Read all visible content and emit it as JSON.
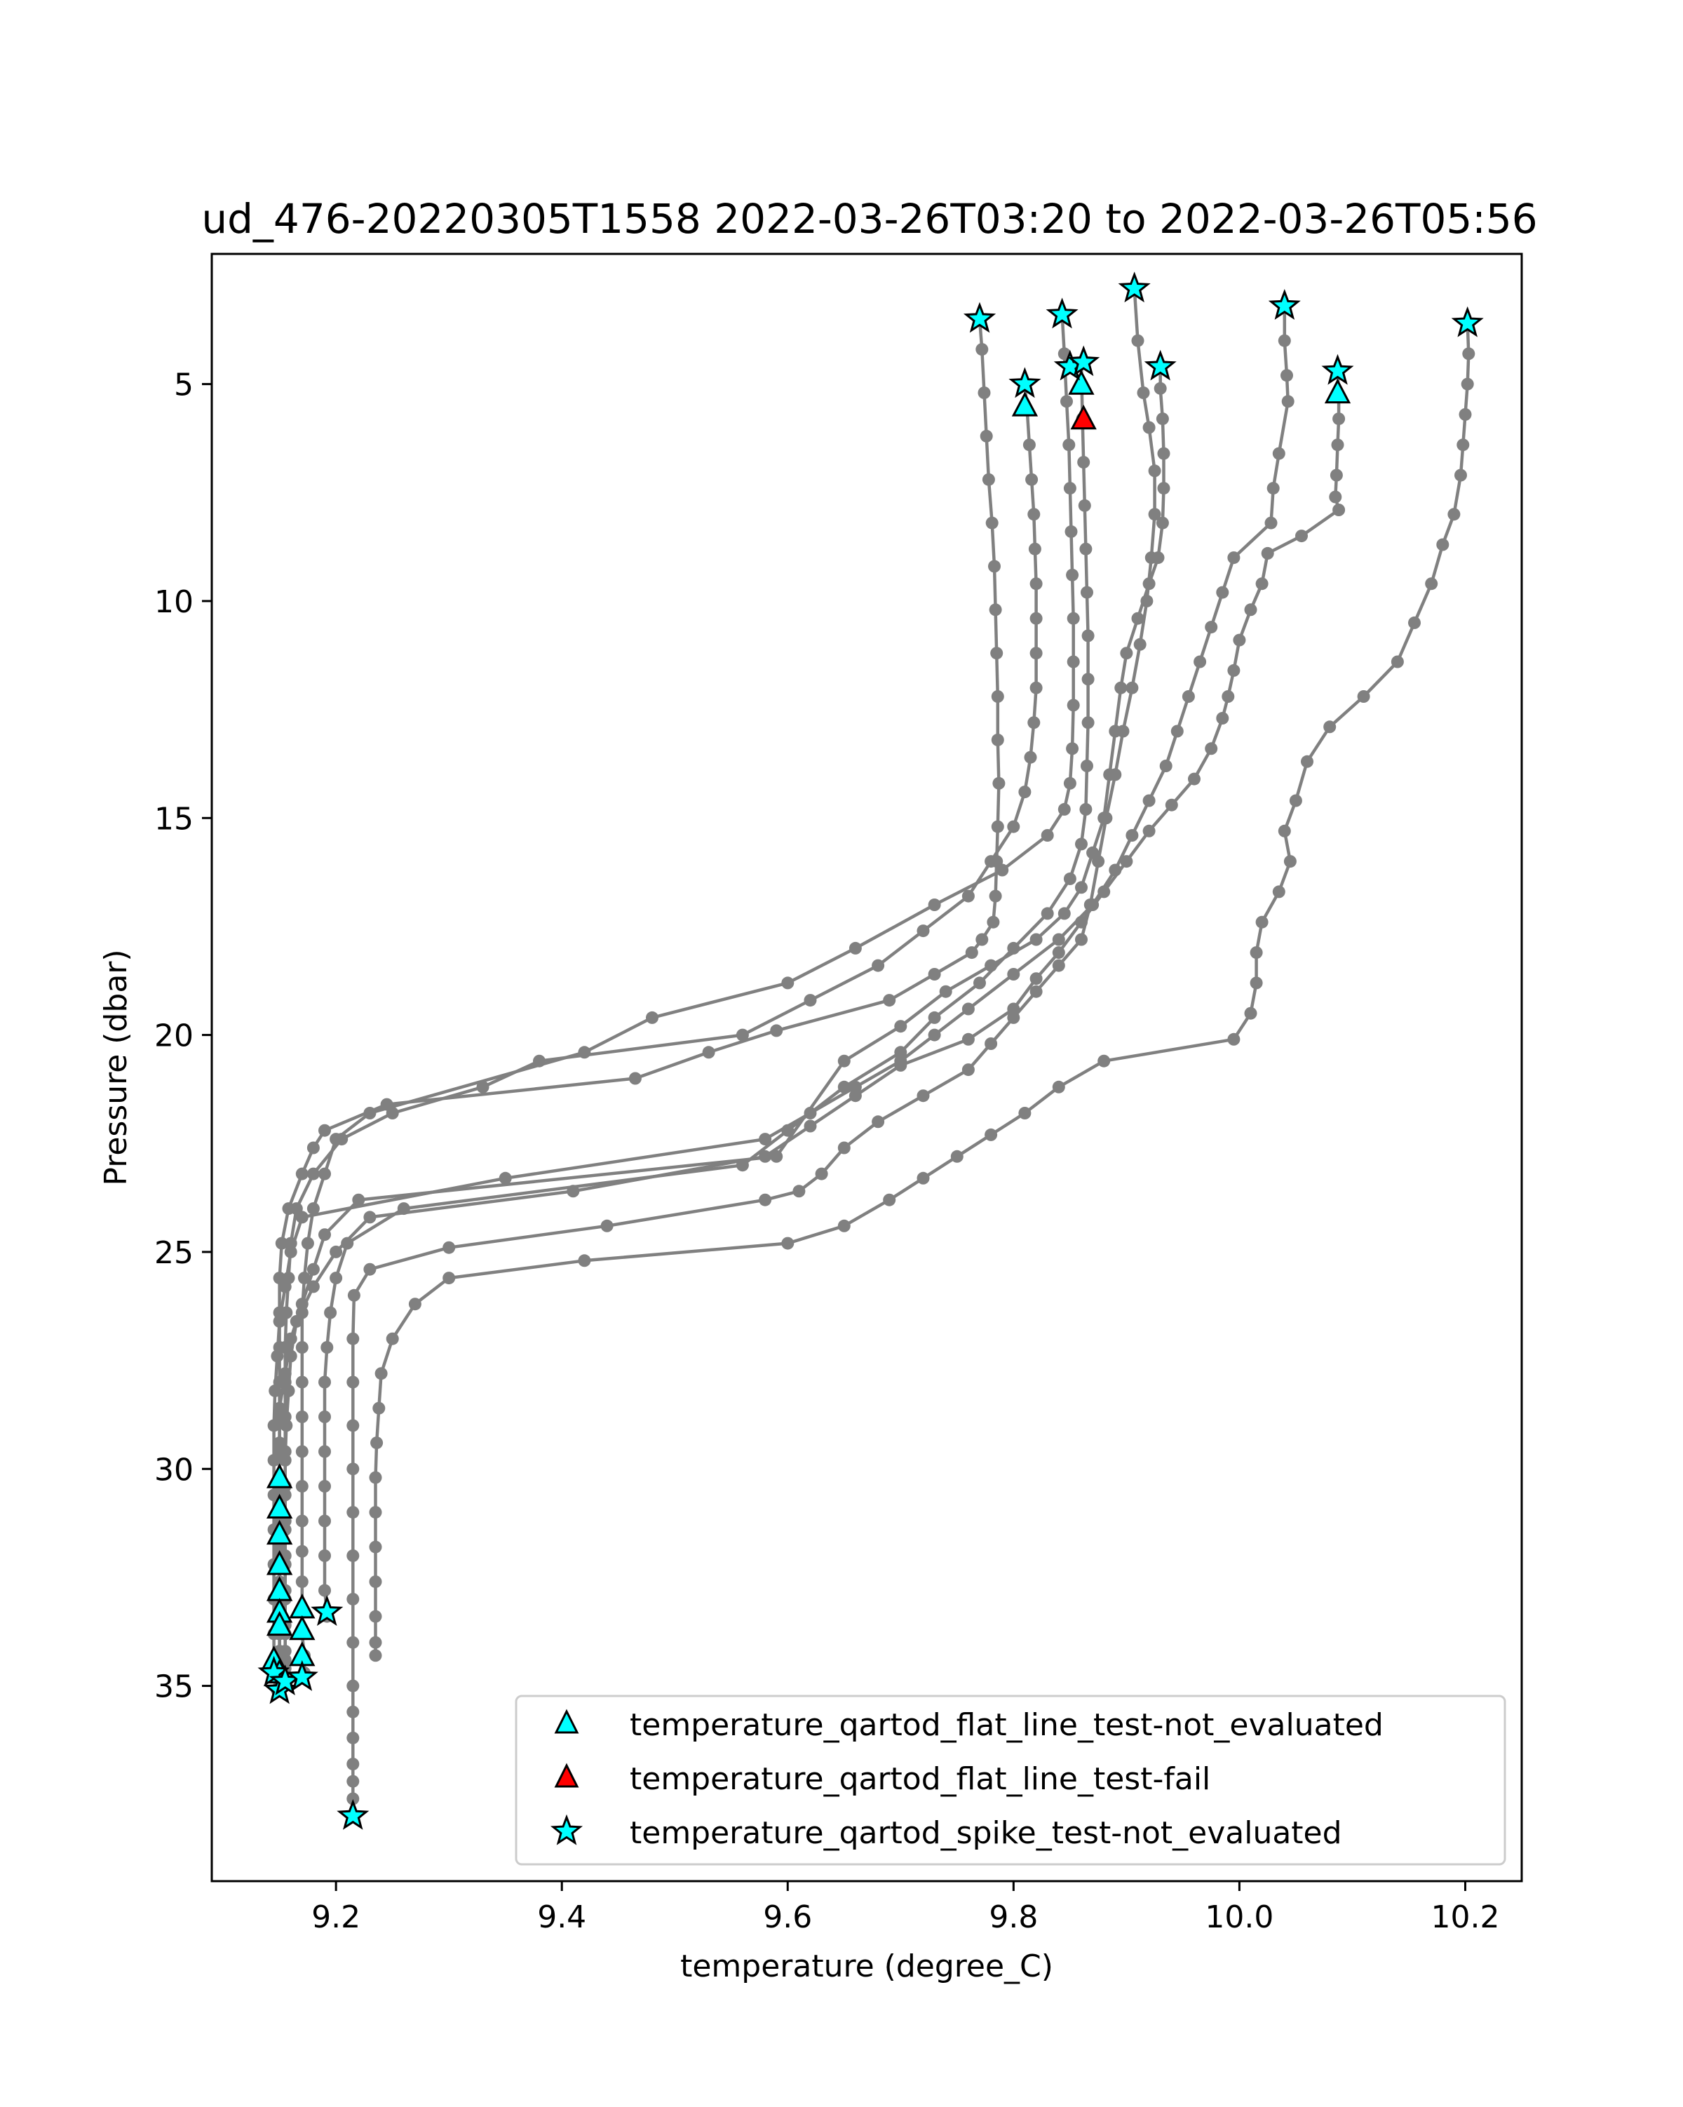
{
  "chart_data": {
    "type": "scatter",
    "title": "ud_476-20220305T1558 2022-03-26T03:20 to 2022-03-26T05:56",
    "xlabel": "temperature (degree_C)",
    "ylabel": "Pressure (dbar)",
    "xlim": [
      9.09,
      10.25
    ],
    "ylim": [
      39.5,
      2.0
    ],
    "y_inverted": true,
    "xticks": [
      9.2,
      9.4,
      9.6,
      9.8,
      10.0,
      10.2
    ],
    "xtick_labels": [
      "9.2",
      "9.4",
      "9.6",
      "9.8",
      "10.0",
      "10.2"
    ],
    "yticks": [
      5,
      10,
      15,
      20,
      25,
      30,
      35
    ],
    "ytick_labels": [
      "5",
      "10",
      "15",
      "20",
      "25",
      "30",
      "35"
    ],
    "grid": false,
    "legend_position": "lower right",
    "colors": {
      "profile_line": "#808080",
      "not_evaluated": "#00ffff",
      "fail": "#ff0000",
      "marker_edge": "#000000"
    },
    "series": [
      {
        "x": [
          9.77,
          9.772,
          9.774,
          9.776,
          9.778,
          9.781,
          9.783,
          9.784,
          9.785,
          9.786,
          9.786,
          9.787,
          9.786,
          9.785,
          9.784,
          9.782,
          9.772,
          9.763,
          9.73,
          9.69,
          9.59,
          9.53,
          9.465,
          9.245,
          9.19,
          9.18,
          9.17,
          9.158,
          9.152,
          9.15,
          9.15,
          9.15,
          9.15,
          9.15,
          9.15,
          9.15,
          9.15,
          9.15,
          9.15,
          9.15,
          9.15,
          9.15,
          9.15,
          9.15,
          9.15,
          9.15
        ],
        "y": [
          3.5,
          4.2,
          5.2,
          6.2,
          7.2,
          8.2,
          9.2,
          10.2,
          11.2,
          12.2,
          13.2,
          14.2,
          15.2,
          16.0,
          16.8,
          17.4,
          17.8,
          18.1,
          18.6,
          19.2,
          19.9,
          20.4,
          21.0,
          21.6,
          22.2,
          22.6,
          23.2,
          24.0,
          24.8,
          25.6,
          26.4,
          27.2,
          28.0,
          28.8,
          29.6,
          30.4,
          31.2,
          32.0,
          32.8,
          33.4,
          33.8,
          34.2,
          34.6,
          34.9,
          35.0,
          35.1
        ]
      },
      {
        "x": [
          9.81,
          9.812,
          9.814,
          9.816,
          9.818,
          9.819,
          9.82,
          9.82,
          9.82,
          9.82,
          9.818,
          9.815,
          9.81,
          9.8,
          9.78,
          9.76,
          9.72,
          9.68,
          9.62,
          9.56,
          9.38,
          9.33,
          9.25,
          9.205,
          9.18,
          9.165,
          9.16,
          9.158,
          9.156,
          9.155,
          9.155,
          9.155,
          9.155,
          9.155,
          9.155,
          9.155,
          9.155,
          9.155,
          9.155,
          9.155,
          9.155
        ],
        "y": [
          5.0,
          5.6,
          6.4,
          7.2,
          8.0,
          8.8,
          9.6,
          10.4,
          11.2,
          12.0,
          12.8,
          13.6,
          14.4,
          15.2,
          16.0,
          16.8,
          17.6,
          18.4,
          19.2,
          20.0,
          20.6,
          21.2,
          21.8,
          22.4,
          23.2,
          24.0,
          24.8,
          25.6,
          26.4,
          27.2,
          28.0,
          28.8,
          29.6,
          30.4,
          31.2,
          32.0,
          32.8,
          33.6,
          34.2,
          34.6,
          34.9
        ]
      },
      {
        "x": [
          9.843,
          9.845,
          9.847,
          9.849,
          9.85,
          9.851,
          9.852,
          9.853,
          9.853,
          9.853,
          9.852,
          9.85,
          9.845,
          9.83,
          9.79,
          9.73,
          9.66,
          9.6,
          9.48,
          9.42,
          9.23,
          9.2,
          9.19,
          9.18,
          9.175,
          9.172,
          9.17,
          9.17,
          9.17,
          9.17,
          9.17,
          9.17,
          9.17,
          9.17,
          9.17,
          9.17,
          9.17,
          9.172,
          9.172
        ],
        "y": [
          3.4,
          4.3,
          5.4,
          6.4,
          7.4,
          8.4,
          9.4,
          10.4,
          11.4,
          12.4,
          13.4,
          14.2,
          14.8,
          15.4,
          16.2,
          17.0,
          18.0,
          18.8,
          19.6,
          20.4,
          21.8,
          22.4,
          23.2,
          24.0,
          24.8,
          25.6,
          26.4,
          27.2,
          28.0,
          28.8,
          29.6,
          30.4,
          31.2,
          31.9,
          32.6,
          33.2,
          33.8,
          34.3,
          34.7
        ]
      },
      {
        "x": [
          9.86,
          9.861,
          9.862,
          9.863,
          9.864,
          9.865,
          9.866,
          9.866,
          9.866,
          9.865,
          9.864,
          9.86,
          9.85,
          9.83,
          9.8,
          9.77,
          9.73,
          9.7,
          9.65,
          9.6,
          9.56,
          9.26,
          9.21,
          9.2,
          9.195,
          9.192,
          9.19,
          9.19,
          9.19,
          9.19,
          9.19,
          9.19,
          9.19,
          9.192,
          9.192
        ],
        "y": [
          4.5,
          5.8,
          6.8,
          7.8,
          8.8,
          9.8,
          10.8,
          11.8,
          12.8,
          13.8,
          14.8,
          15.6,
          16.4,
          17.2,
          18.0,
          18.8,
          19.6,
          20.4,
          21.2,
          22.2,
          23.0,
          24.0,
          24.8,
          25.6,
          26.4,
          27.2,
          28.0,
          28.8,
          29.6,
          30.4,
          31.2,
          32.0,
          32.8,
          33.3,
          33.4
        ]
      },
      {
        "x": [
          9.907,
          9.91,
          9.915,
          9.92,
          9.925,
          9.925,
          9.922,
          9.918,
          9.912,
          9.905,
          9.897,
          9.89,
          9.882,
          9.875,
          9.868,
          9.86,
          9.84,
          9.82,
          9.8,
          9.78,
          9.76,
          9.72,
          9.68,
          9.65,
          9.63,
          9.61,
          9.58,
          9.44,
          9.3,
          9.23,
          9.216,
          9.215,
          9.215,
          9.215,
          9.215,
          9.215,
          9.215,
          9.215,
          9.215,
          9.215,
          9.215,
          9.215,
          9.215,
          9.215,
          9.215,
          9.215
        ],
        "y": [
          2.8,
          4.0,
          5.2,
          6.0,
          7.0,
          8.0,
          9.0,
          10.0,
          11.0,
          12.0,
          13.0,
          14.0,
          15.0,
          16.0,
          17.0,
          17.8,
          18.4,
          19.0,
          19.6,
          20.2,
          20.8,
          21.4,
          22.0,
          22.6,
          23.2,
          23.6,
          23.8,
          24.4,
          24.9,
          25.4,
          26.0,
          27.0,
          28.0,
          29.0,
          30.0,
          31.0,
          32.0,
          33.0,
          34.0,
          35.0,
          35.6,
          36.2,
          36.8,
          37.2,
          37.6,
          38.0
        ]
      },
      {
        "x": [
          9.93,
          9.93,
          9.932,
          9.933,
          9.933,
          9.932,
          9.928,
          9.92,
          9.91,
          9.9,
          9.895,
          9.89,
          9.885,
          9.88,
          9.87,
          9.86,
          9.845,
          9.82,
          9.78,
          9.74,
          9.7,
          9.65,
          9.59,
          9.22,
          9.19,
          9.18,
          9.17,
          9.16,
          9.155,
          9.15,
          9.15,
          9.15,
          9.15,
          9.15,
          9.15,
          9.15,
          9.15,
          9.15,
          9.15,
          9.15,
          9.148,
          9.148
        ],
        "y": [
          4.6,
          5.1,
          5.8,
          6.6,
          7.4,
          8.2,
          9.0,
          9.6,
          10.4,
          11.2,
          12.0,
          13.0,
          14.0,
          15.0,
          15.8,
          16.6,
          17.2,
          17.8,
          18.4,
          19.0,
          19.8,
          20.6,
          22.8,
          23.8,
          24.6,
          25.4,
          26.2,
          27.0,
          27.8,
          28.6,
          29.4,
          30.2,
          31.0,
          31.8,
          32.6,
          33.0,
          33.4,
          33.8,
          34.2,
          34.6,
          34.8,
          35.1
        ]
      },
      {
        "x": [
          10.04,
          10.04,
          10.042,
          10.043,
          10.035,
          10.03,
          10.028,
          9.995,
          9.985,
          9.975,
          9.965,
          9.955,
          9.945,
          9.935,
          9.92,
          9.905,
          9.89,
          9.87,
          9.84,
          9.8,
          9.76,
          9.73,
          9.7,
          9.66,
          9.62,
          9.58,
          9.35,
          9.17,
          9.16,
          9.155,
          9.15,
          9.148,
          9.146,
          9.145,
          9.145,
          9.145,
          9.145,
          9.145,
          9.145,
          9.145,
          9.145,
          9.145
        ],
        "y": [
          3.2,
          4.0,
          4.8,
          5.4,
          6.6,
          7.4,
          8.2,
          9.0,
          9.8,
          10.6,
          11.4,
          12.2,
          13.0,
          13.8,
          14.6,
          15.4,
          16.2,
          17.0,
          17.8,
          18.6,
          19.4,
          20.0,
          20.6,
          21.2,
          21.8,
          22.4,
          23.3,
          24.2,
          25.0,
          25.8,
          26.6,
          27.4,
          28.2,
          29.0,
          29.8,
          30.6,
          31.4,
          32.2,
          33.0,
          33.8,
          34.4,
          34.8
        ]
      },
      {
        "x": [
          10.087,
          10.088,
          10.088,
          10.087,
          10.086,
          10.085,
          10.088,
          10.055,
          10.025,
          10.02,
          10.01,
          10.0,
          9.995,
          9.99,
          9.985,
          9.975,
          9.96,
          9.94,
          9.92,
          9.9,
          9.88,
          9.86,
          9.84,
          9.82,
          9.8,
          9.76,
          9.7,
          9.66,
          9.62,
          9.58,
          9.41,
          9.23,
          9.2,
          9.18,
          9.165,
          9.16,
          9.158,
          9.156,
          9.155,
          9.155,
          9.155,
          9.155,
          9.155,
          9.155,
          9.155,
          9.155
        ],
        "y": [
          4.7,
          5.3,
          5.8,
          6.4,
          7.1,
          7.6,
          7.9,
          8.5,
          8.9,
          9.6,
          10.2,
          10.9,
          11.6,
          12.2,
          12.7,
          13.4,
          14.1,
          14.7,
          15.3,
          16.0,
          16.7,
          17.4,
          18.1,
          18.7,
          19.4,
          20.1,
          20.7,
          21.4,
          22.1,
          22.8,
          23.6,
          24.2,
          25.0,
          25.8,
          26.6,
          27.4,
          28.2,
          29.0,
          29.8,
          30.6,
          31.4,
          32.2,
          33.0,
          33.8,
          34.4,
          34.9
        ]
      },
      {
        "x": [
          10.202,
          10.203,
          10.202,
          10.2,
          10.198,
          10.196,
          10.19,
          10.18,
          10.17,
          10.155,
          10.14,
          10.11,
          10.08,
          10.06,
          10.05,
          10.04,
          10.045,
          10.035,
          10.02,
          10.015,
          10.015,
          10.01,
          9.995,
          9.88,
          9.84,
          9.81,
          9.78,
          9.75,
          9.72,
          9.69,
          9.65,
          9.6,
          9.42,
          9.3,
          9.27,
          9.25,
          9.24,
          9.238,
          9.236,
          9.235,
          9.235,
          9.235,
          9.235,
          9.235,
          9.235,
          9.235
        ],
        "y": [
          3.6,
          4.3,
          5.0,
          5.7,
          6.4,
          7.1,
          8.0,
          8.7,
          9.6,
          10.5,
          11.4,
          12.2,
          12.9,
          13.7,
          14.6,
          15.3,
          16.0,
          16.7,
          17.4,
          18.1,
          18.8,
          19.5,
          20.1,
          20.6,
          21.2,
          21.8,
          22.3,
          22.8,
          23.3,
          23.8,
          24.4,
          24.8,
          25.2,
          25.6,
          26.2,
          27.0,
          27.8,
          28.6,
          29.4,
          30.2,
          31.0,
          31.8,
          32.6,
          33.4,
          34.0,
          34.3
        ]
      }
    ],
    "legend": [
      {
        "label": "temperature_qartod_flat_line_test-not_evaluated",
        "marker": "triangle",
        "color": "#00ffff"
      },
      {
        "label": "temperature_qartod_flat_line_test-fail",
        "marker": "triangle",
        "color": "#ff0000"
      },
      {
        "label": "temperature_qartod_spike_test-not_evaluated",
        "marker": "star",
        "color": "#00ffff"
      }
    ],
    "flat_line_not_evaluated": {
      "x": [
        9.81,
        9.86,
        10.087,
        9.15,
        9.15,
        9.15,
        9.15,
        9.15,
        9.15,
        9.15,
        9.145,
        9.15,
        9.17,
        9.17,
        9.17
      ],
      "y": [
        5.5,
        5.0,
        5.2,
        30.2,
        30.9,
        31.5,
        32.2,
        32.8,
        33.3,
        33.6,
        34.4,
        34.7,
        33.2,
        33.7,
        34.3
      ]
    },
    "flat_line_fail": {
      "x": [
        9.862
      ],
      "y": [
        5.8
      ]
    },
    "spike_not_evaluated": {
      "x": [
        9.77,
        9.843,
        9.907,
        10.04,
        10.202,
        9.81,
        9.85,
        9.862,
        9.93,
        10.087,
        9.145,
        9.15,
        9.155,
        9.17,
        9.192,
        9.215
      ],
      "y": [
        3.5,
        3.4,
        2.8,
        3.2,
        3.6,
        5.0,
        4.6,
        4.5,
        4.6,
        4.7,
        34.7,
        35.1,
        34.9,
        34.8,
        33.3,
        38.0
      ]
    }
  }
}
